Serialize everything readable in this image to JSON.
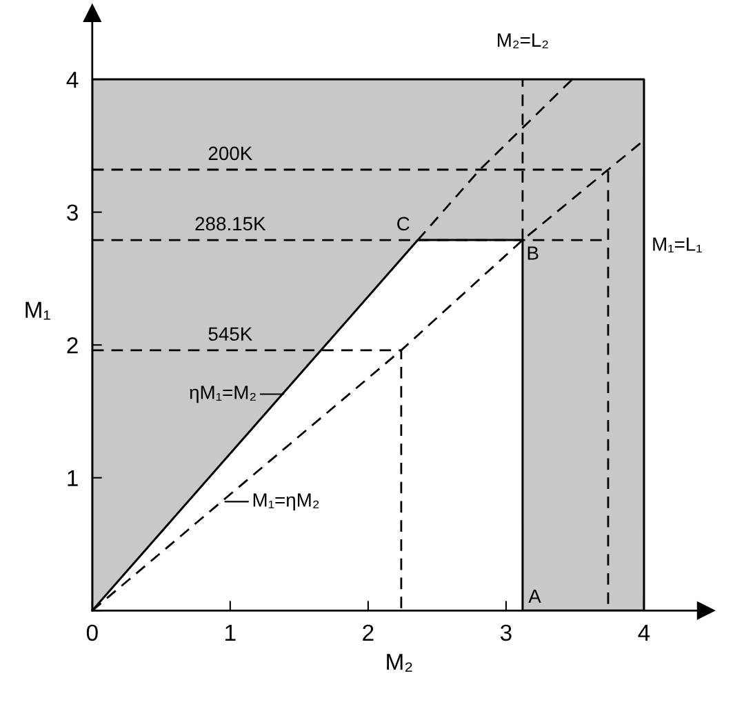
{
  "chart_data": {
    "type": "line",
    "xlabel": "M₂",
    "ylabel": "M₁",
    "xlim": [
      0,
      4.45
    ],
    "ylim": [
      0,
      4.5
    ],
    "xticks": [
      0,
      1,
      2,
      3,
      4
    ],
    "yticks": [
      {
        "value": 0,
        "label": null
      },
      1,
      2,
      3,
      4
    ],
    "grid": false,
    "legend": false,
    "marker": "none",
    "series": [
      {
        "type": "area",
        "color": "#c8c8c8",
        "x": [
          0,
          2.36,
          3.12,
          3.12,
          4.0,
          4.0,
          0
        ],
        "values": [
          0,
          2.79,
          2.79,
          0,
          0,
          4.0,
          4.0
        ]
      },
      {
        "line_style": "dashed",
        "color": "#000000",
        "x": [
          0,
          2.24,
          3.12,
          3.74,
          4.01
        ],
        "values": [
          0,
          1.96,
          2.79,
          3.32,
          3.55
        ]
      },
      {
        "line_style": "dashed",
        "color": "#000000",
        "x": [
          2.36,
          2.81,
          3.48
        ],
        "values": [
          2.79,
          3.32,
          4.0
        ]
      },
      {
        "line_style": "dashed",
        "color": "#000000",
        "x": [
          0,
          3.74,
          3.74
        ],
        "values": [
          3.32,
          3.32,
          0
        ]
      },
      {
        "line_style": "dashed",
        "color": "#000000",
        "x": [
          0,
          3.74
        ],
        "values": [
          2.79,
          2.79
        ]
      },
      {
        "line_style": "dashed",
        "color": "#000000",
        "x": [
          0,
          2.24,
          2.24
        ],
        "values": [
          1.96,
          1.96,
          0
        ]
      },
      {
        "line_style": "dashed",
        "color": "#000000",
        "x": [
          3.12,
          3.12
        ],
        "values": [
          2.79,
          4.0
        ]
      }
    ],
    "annotations": [
      {
        "text": "200K",
        "x": 1.0,
        "y": 3.32
      },
      {
        "text": "288.15K",
        "x": 1.0,
        "y": 2.79
      },
      {
        "text": "545K",
        "x": 1.0,
        "y": 1.96
      },
      {
        "text": "C",
        "x": 2.36,
        "y": 2.79
      },
      {
        "text": "B",
        "x": 3.12,
        "y": 2.79
      },
      {
        "text": "A",
        "x": 3.12,
        "y": 0
      },
      {
        "text": "ηM₁=M₂",
        "x": 1.4,
        "y": 1.63
      },
      {
        "text": "M₁=ηM₂",
        "x": 0.95,
        "y": 0.82
      },
      {
        "text": "M₂=L₂",
        "x": 3.12,
        "y": 4.0
      },
      {
        "text": "M₁=L₁",
        "x": 4.0,
        "y": 2.79
      }
    ]
  }
}
